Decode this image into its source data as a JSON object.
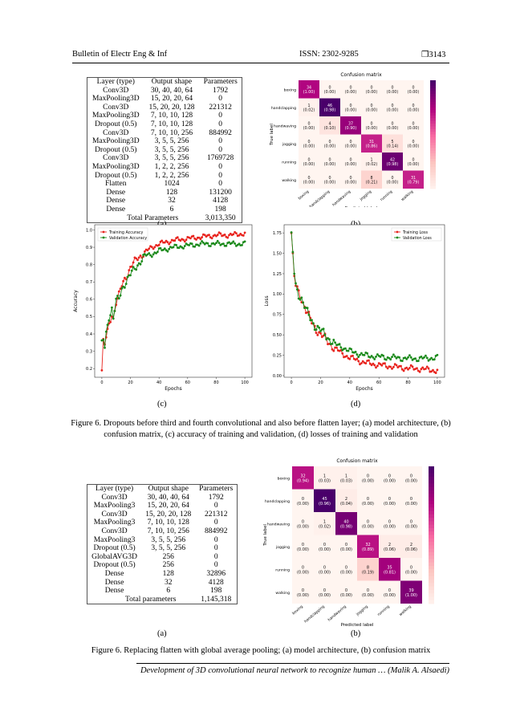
{
  "header": {
    "journal": "Bulletin of Electr Eng & Inf",
    "issn": "ISSN: 2302-9285",
    "page": "❒3143"
  },
  "table1": {
    "columns": [
      "Layer (type)",
      "Output shape",
      "Parameters"
    ],
    "rows": [
      [
        "Conv3D",
        "30, 40, 40, 64",
        "1792"
      ],
      [
        "MaxPooling3D",
        "15, 20, 20, 64",
        "0"
      ],
      [
        "Conv3D",
        "15, 20, 20, 128",
        "221312"
      ],
      [
        "MaxPooling3D",
        "7, 10, 10, 128",
        "0"
      ],
      [
        "Dropout (0.5)",
        "7, 10, 10, 128",
        "0"
      ],
      [
        "Conv3D",
        "7, 10, 10, 256",
        "884992"
      ],
      [
        "MaxPooling3D",
        "3, 5, 5, 256",
        "0"
      ],
      [
        "Dropout (0.5)",
        "3, 5, 5, 256",
        "0"
      ],
      [
        "Conv3D",
        "3, 5, 5, 256",
        "1769728"
      ],
      [
        "MaxPooling3D",
        "1, 2, 2, 256",
        "0"
      ],
      [
        "Dropout (0.5)",
        "1, 2, 2, 256",
        "0"
      ],
      [
        "Flatten",
        "1024",
        "0"
      ],
      [
        "Dense",
        "128",
        "131200"
      ],
      [
        "Dense",
        "32",
        "4128"
      ],
      [
        "Dense",
        "6",
        "198"
      ]
    ],
    "total_label": "Total Parameters",
    "total_value": "3,013,350"
  },
  "table2": {
    "columns": [
      "Layer (type)",
      "Output shape",
      "Parameters"
    ],
    "rows": [
      [
        "Conv3D",
        "30, 40, 40, 64",
        "1792"
      ],
      [
        "MaxPooling3",
        "15, 20, 20, 64",
        "0"
      ],
      [
        "Conv3D",
        "15, 20, 20, 128",
        "221312"
      ],
      [
        "MaxPooling3",
        "7, 10, 10, 128",
        "0"
      ],
      [
        "Conv3D",
        "7, 10, 10, 256",
        "884992"
      ],
      [
        "MaxPooling3",
        "3, 5, 5, 256",
        "0"
      ],
      [
        "Dropout (0.5)",
        "3, 5, 5, 256",
        "0"
      ],
      [
        "GlobalAVG3D",
        "256",
        "0"
      ],
      [
        "Dropout (0.5)",
        "256",
        "0"
      ],
      [
        "Dense",
        "128",
        "32896"
      ],
      [
        "Dense",
        "32",
        "4128"
      ],
      [
        "Dense",
        "6",
        "198"
      ]
    ],
    "total_label": "Total parameters",
    "total_value": "1,145,318"
  },
  "labels": {
    "a": "(a)",
    "b": "(b)",
    "c": "(c)",
    "d": "(d)"
  },
  "captions": {
    "fig1": "Figure 6. Dropouts before third and fourth convolutional and also before flatten layer; (a) model architecture, (b) confusion matrix, (c) accuracy of training and validation, (d) losses of training and validation",
    "fig2": "Figure 6. Replacing flatten with global average pooling; (a) model architecture, (b) confusion matrix"
  },
  "footer": "Development of 3D convolutional neural network to recognize human … (Malik A. Alsaedi)",
  "chart_data": [
    {
      "type": "heatmap",
      "title": "Confusion matrix",
      "xlabel": "Predicted label",
      "ylabel": "True label",
      "classes": [
        "boxing",
        "handclapping",
        "handwaving",
        "jogging",
        "running",
        "walking"
      ],
      "counts": [
        [
          34,
          0,
          0,
          0,
          0,
          0
        ],
        [
          1,
          46,
          0,
          0,
          0,
          0
        ],
        [
          0,
          4,
          37,
          0,
          0,
          0
        ],
        [
          0,
          0,
          0,
          31,
          5,
          0
        ],
        [
          0,
          0,
          0,
          1,
          42,
          0
        ],
        [
          0,
          0,
          0,
          8,
          0,
          31
        ]
      ],
      "fractions": [
        [
          "(1.00)",
          "(0.00)",
          "(0.00)",
          "(0.00)",
          "(0.00)",
          "(0.00)"
        ],
        [
          "(0.02)",
          "(0.98)",
          "(0.00)",
          "(0.00)",
          "(0.00)",
          "(0.00)"
        ],
        [
          "(0.00)",
          "(0.10)",
          "(0.90)",
          "(0.00)",
          "(0.00)",
          "(0.00)"
        ],
        [
          "(0.00)",
          "(0.00)",
          "(0.00)",
          "(0.86)",
          "(0.14)",
          "(0.00)"
        ],
        [
          "(0.00)",
          "(0.00)",
          "(0.00)",
          "(0.02)",
          "(0.98)",
          "(0.00)"
        ],
        [
          "(0.00)",
          "(0.00)",
          "(0.00)",
          "(0.21)",
          "(0.00)",
          "(0.79)"
        ]
      ],
      "colorbar_max": 46
    },
    {
      "type": "line",
      "xlabel": "Epochs",
      "ylabel": "Accuracy",
      "xlim": [
        -5,
        105
      ],
      "ylim": [
        0.15,
        1.03
      ],
      "xticks": [
        0,
        20,
        40,
        60,
        80,
        100
      ],
      "yticks": [
        0.2,
        0.3,
        0.4,
        0.5,
        0.6,
        0.7,
        0.8,
        0.9,
        1.0
      ],
      "legend_position": "top-left",
      "series": [
        {
          "name": "Training Accuracy",
          "color": "#e8231d",
          "keypoints": [
            [
              0,
              0.19
            ],
            [
              1,
              0.35
            ],
            [
              2,
              0.33
            ],
            [
              3,
              0.38
            ],
            [
              5,
              0.45
            ],
            [
              7,
              0.52
            ],
            [
              8,
              0.49
            ],
            [
              10,
              0.58
            ],
            [
              12,
              0.62
            ],
            [
              14,
              0.68
            ],
            [
              16,
              0.72
            ],
            [
              18,
              0.75
            ],
            [
              20,
              0.78
            ],
            [
              25,
              0.84
            ],
            [
              30,
              0.87
            ],
            [
              35,
              0.9
            ],
            [
              40,
              0.92
            ],
            [
              50,
              0.94
            ],
            [
              60,
              0.95
            ],
            [
              70,
              0.96
            ],
            [
              80,
              0.97
            ],
            [
              90,
              0.97
            ],
            [
              100,
              0.98
            ]
          ]
        },
        {
          "name": "Validation Accuracy",
          "color": "#1b8a1b",
          "keypoints": [
            [
              0,
              0.34
            ],
            [
              1,
              0.36
            ],
            [
              2,
              0.32
            ],
            [
              3,
              0.4
            ],
            [
              5,
              0.5
            ],
            [
              7,
              0.55
            ],
            [
              8,
              0.49
            ],
            [
              10,
              0.59
            ],
            [
              12,
              0.6
            ],
            [
              14,
              0.66
            ],
            [
              16,
              0.69
            ],
            [
              18,
              0.72
            ],
            [
              20,
              0.74
            ],
            [
              25,
              0.8
            ],
            [
              30,
              0.85
            ],
            [
              35,
              0.86
            ],
            [
              40,
              0.88
            ],
            [
              50,
              0.9
            ],
            [
              60,
              0.91
            ],
            [
              70,
              0.92
            ],
            [
              80,
              0.92
            ],
            [
              90,
              0.92
            ],
            [
              100,
              0.92
            ]
          ]
        }
      ]
    },
    {
      "type": "line",
      "xlabel": "Epochs",
      "ylabel": "Loss",
      "xlim": [
        -5,
        105
      ],
      "ylim": [
        -0.02,
        1.85
      ],
      "xticks": [
        0,
        20,
        40,
        60,
        80,
        100
      ],
      "yticks": [
        0.0,
        0.25,
        0.5,
        0.75,
        1.0,
        1.25,
        1.5,
        1.75
      ],
      "legend_position": "top-right",
      "series": [
        {
          "name": "Training Loss",
          "color": "#e8231d",
          "keypoints": [
            [
              0,
              1.75
            ],
            [
              1,
              1.45
            ],
            [
              2,
              1.2
            ],
            [
              3,
              1.1
            ],
            [
              5,
              1.02
            ],
            [
              7,
              0.95
            ],
            [
              10,
              0.8
            ],
            [
              13,
              0.68
            ],
            [
              16,
              0.6
            ],
            [
              20,
              0.5
            ],
            [
              25,
              0.42
            ],
            [
              30,
              0.33
            ],
            [
              35,
              0.27
            ],
            [
              40,
              0.22
            ],
            [
              50,
              0.16
            ],
            [
              60,
              0.13
            ],
            [
              70,
              0.11
            ],
            [
              80,
              0.09
            ],
            [
              90,
              0.08
            ],
            [
              100,
              0.06
            ]
          ]
        },
        {
          "name": "Validation Loss",
          "color": "#1b8a1b",
          "keypoints": [
            [
              0,
              1.7
            ],
            [
              1,
              1.5
            ],
            [
              2,
              1.25
            ],
            [
              3,
              1.1
            ],
            [
              5,
              1.0
            ],
            [
              7,
              0.95
            ],
            [
              10,
              0.8
            ],
            [
              13,
              0.7
            ],
            [
              16,
              0.62
            ],
            [
              20,
              0.55
            ],
            [
              25,
              0.47
            ],
            [
              30,
              0.38
            ],
            [
              35,
              0.35
            ],
            [
              40,
              0.3
            ],
            [
              50,
              0.25
            ],
            [
              60,
              0.23
            ],
            [
              70,
              0.22
            ],
            [
              80,
              0.21
            ],
            [
              90,
              0.21
            ],
            [
              100,
              0.22
            ]
          ]
        }
      ]
    },
    {
      "type": "heatmap",
      "title": "Confusion matrix",
      "xlabel": "Predicted label",
      "ylabel": "True label",
      "classes": [
        "boxing",
        "handclapping",
        "handwaving",
        "jogging",
        "running",
        "walking"
      ],
      "counts": [
        [
          32,
          1,
          1,
          0,
          0,
          0
        ],
        [
          0,
          45,
          2,
          0,
          0,
          0
        ],
        [
          0,
          1,
          40,
          0,
          0,
          0
        ],
        [
          0,
          0,
          0,
          32,
          2,
          2
        ],
        [
          0,
          0,
          0,
          8,
          35,
          0
        ],
        [
          0,
          0,
          0,
          0,
          0,
          39
        ]
      ],
      "fractions": [
        [
          "(0.94)",
          "(0.03)",
          "(0.03)",
          "(0.00)",
          "(0.00)",
          "(0.00)"
        ],
        [
          "(0.00)",
          "(0.96)",
          "(0.04)",
          "(0.00)",
          "(0.00)",
          "(0.00)"
        ],
        [
          "(0.00)",
          "(0.02)",
          "(0.98)",
          "(0.00)",
          "(0.00)",
          "(0.00)"
        ],
        [
          "(0.00)",
          "(0.00)",
          "(0.00)",
          "(0.89)",
          "(0.06)",
          "(0.06)"
        ],
        [
          "(0.00)",
          "(0.00)",
          "(0.00)",
          "(0.19)",
          "(0.81)",
          "(0.00)"
        ],
        [
          "(0.00)",
          "(0.00)",
          "(0.00)",
          "(0.00)",
          "(0.00)",
          "(1.00)"
        ]
      ],
      "colorbar_max": 45
    }
  ]
}
